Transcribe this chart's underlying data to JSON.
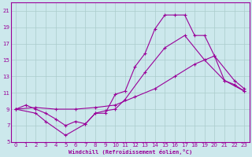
{
  "xlabel": "Windchill (Refroidissement éolien,°C)",
  "bg_color": "#cce8ec",
  "grid_color": "#aacccc",
  "line_color": "#990099",
  "xlim": [
    -0.5,
    23.5
  ],
  "ylim": [
    5,
    22
  ],
  "xticks": [
    0,
    1,
    2,
    3,
    4,
    5,
    6,
    7,
    8,
    9,
    10,
    11,
    12,
    13,
    14,
    15,
    16,
    17,
    18,
    19,
    20,
    21,
    22,
    23
  ],
  "yticks": [
    5,
    7,
    9,
    11,
    13,
    15,
    17,
    19,
    21
  ],
  "curve_top_x": [
    0,
    1,
    2,
    3,
    4,
    5,
    6,
    7,
    8,
    9,
    10,
    11,
    12,
    13,
    14,
    15,
    16,
    17,
    18,
    19,
    20,
    21,
    22,
    23
  ],
  "curve_top_y": [
    9.0,
    9.5,
    9.0,
    8.5,
    7.8,
    7.0,
    7.5,
    7.2,
    8.5,
    8.5,
    10.8,
    11.2,
    14.2,
    15.8,
    18.8,
    20.5,
    20.5,
    20.5,
    18.0,
    18.0,
    15.5,
    12.5,
    12.0,
    11.2
  ],
  "curve_mid_x": [
    0,
    2,
    4,
    6,
    8,
    10,
    12,
    14,
    16,
    18,
    20,
    22,
    23
  ],
  "curve_mid_y": [
    9.0,
    9.2,
    9.0,
    9.0,
    9.2,
    9.5,
    10.5,
    11.5,
    13.0,
    14.5,
    15.5,
    12.5,
    11.5
  ],
  "curve_bot_x": [
    0,
    2,
    3,
    5,
    7,
    8,
    9,
    10,
    11,
    13,
    15,
    17,
    19,
    21,
    23
  ],
  "curve_bot_y": [
    9.0,
    8.5,
    7.5,
    5.8,
    7.2,
    8.5,
    8.8,
    9.0,
    10.2,
    13.5,
    16.5,
    18.0,
    15.0,
    12.5,
    11.2
  ]
}
